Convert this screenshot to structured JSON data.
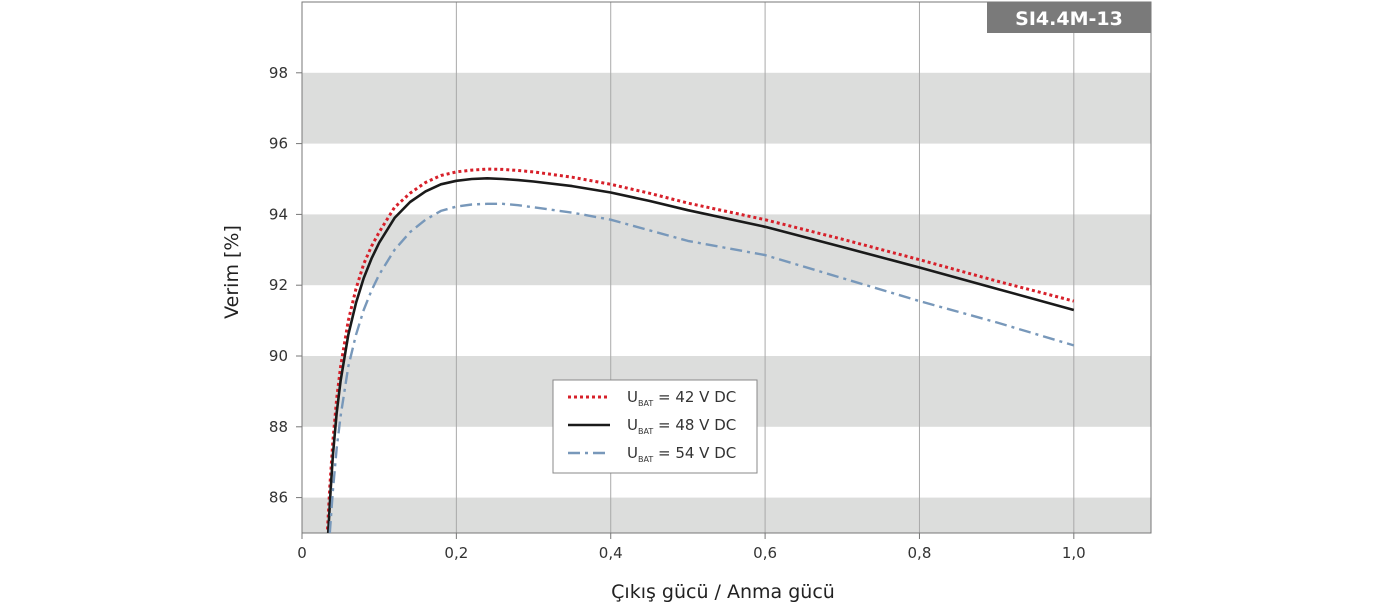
{
  "chart_data": {
    "type": "line",
    "badge": "SI4.4M-13",
    "xlabel": "Çıkış gücü / Anma gücü",
    "ylabel": "Verim [%]",
    "xlim": [
      0,
      1.1
    ],
    "ylim": [
      85,
      100
    ],
    "x_ticks": [
      {
        "value": 0,
        "label": "0"
      },
      {
        "value": 0.2,
        "label": "0,2"
      },
      {
        "value": 0.4,
        "label": "0,4"
      },
      {
        "value": 0.6,
        "label": "0,6"
      },
      {
        "value": 0.8,
        "label": "0,8"
      },
      {
        "value": 1.0,
        "label": "1,0"
      }
    ],
    "y_ticks": [
      {
        "value": 86,
        "label": "86"
      },
      {
        "value": 88,
        "label": "88"
      },
      {
        "value": 90,
        "label": "90"
      },
      {
        "value": 92,
        "label": "92"
      },
      {
        "value": 94,
        "label": "94"
      },
      {
        "value": 96,
        "label": "96"
      },
      {
        "value": 98,
        "label": "98"
      }
    ],
    "bands": [
      [
        86,
        85
      ],
      [
        88,
        90
      ],
      [
        92,
        94
      ],
      [
        96,
        98
      ]
    ],
    "grid": "vertical",
    "legend_position": "center-left",
    "series": [
      {
        "name": "U BAT = 42 V DC",
        "label_main": "U",
        "label_sub": "BAT",
        "label_rest": " = 42 V DC",
        "color": "#d7202a",
        "style": "dotted",
        "x": [
          0.033,
          0.036,
          0.04,
          0.045,
          0.05,
          0.06,
          0.07,
          0.08,
          0.09,
          0.1,
          0.12,
          0.14,
          0.16,
          0.18,
          0.2,
          0.22,
          0.24,
          0.26,
          0.28,
          0.3,
          0.35,
          0.4,
          0.45,
          0.5,
          0.6,
          0.7,
          0.8,
          0.9,
          1.0
        ],
        "y": [
          85.1,
          86.3,
          87.6,
          88.8,
          89.7,
          91.0,
          91.9,
          92.6,
          93.1,
          93.5,
          94.2,
          94.6,
          94.9,
          95.1,
          95.2,
          95.25,
          95.28,
          95.27,
          95.24,
          95.2,
          95.05,
          94.85,
          94.6,
          94.32,
          93.85,
          93.3,
          92.72,
          92.12,
          91.55
        ]
      },
      {
        "name": "U BAT = 48 V DC",
        "label_main": "U",
        "label_sub": "BAT",
        "label_rest": " = 48 V DC",
        "color": "#1a1a1a",
        "style": "solid",
        "x": [
          0.034,
          0.037,
          0.04,
          0.045,
          0.05,
          0.06,
          0.07,
          0.08,
          0.09,
          0.1,
          0.12,
          0.14,
          0.16,
          0.18,
          0.2,
          0.22,
          0.24,
          0.26,
          0.28,
          0.3,
          0.35,
          0.4,
          0.45,
          0.5,
          0.6,
          0.7,
          0.8,
          0.9,
          1.0
        ],
        "y": [
          85.0,
          86.2,
          87.2,
          88.4,
          89.3,
          90.6,
          91.5,
          92.2,
          92.75,
          93.2,
          93.9,
          94.35,
          94.65,
          94.85,
          94.95,
          95.0,
          95.02,
          95.0,
          94.97,
          94.93,
          94.8,
          94.62,
          94.38,
          94.12,
          93.65,
          93.08,
          92.5,
          91.9,
          91.3
        ]
      },
      {
        "name": "U BAT = 54 V DC",
        "label_main": "U",
        "label_sub": "BAT",
        "label_rest": " = 54 V DC",
        "color": "#7898ba",
        "style": "dashdot",
        "x": [
          0.036,
          0.04,
          0.045,
          0.05,
          0.06,
          0.07,
          0.08,
          0.09,
          0.1,
          0.12,
          0.14,
          0.16,
          0.18,
          0.2,
          0.22,
          0.24,
          0.26,
          0.28,
          0.3,
          0.35,
          0.4,
          0.45,
          0.5,
          0.6,
          0.7,
          0.8,
          0.9,
          1.0
        ],
        "y": [
          85.0,
          86.2,
          87.4,
          88.3,
          89.7,
          90.6,
          91.3,
          91.85,
          92.3,
          93.0,
          93.5,
          93.85,
          94.1,
          94.22,
          94.28,
          94.3,
          94.3,
          94.26,
          94.2,
          94.05,
          93.85,
          93.55,
          93.25,
          92.85,
          92.2,
          91.55,
          90.95,
          90.3
        ]
      }
    ]
  }
}
